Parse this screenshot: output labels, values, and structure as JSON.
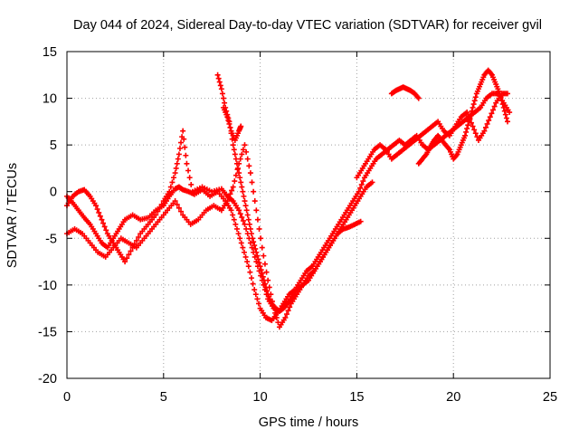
{
  "chart_data": {
    "type": "scatter",
    "title": "Day 044 of 2024, Sidereal Day-to-day VTEC variation (SDTVAR) for receiver gvil",
    "xlabel": "GPS time / hours",
    "ylabel": "SDTVAR / TECUs",
    "xlim": [
      0,
      25
    ],
    "ylim": [
      -20,
      15
    ],
    "x_ticks": [
      "0",
      "5",
      "10",
      "15",
      "20",
      "25"
    ],
    "y_ticks": [
      "15",
      "10",
      "5",
      "0",
      "-5",
      "-10",
      "-15",
      "-20"
    ],
    "grid": true,
    "legend": "none",
    "marker": "plus",
    "color": "#ff0000",
    "series": [
      {
        "x": [
          0.0,
          0.3,
          0.6,
          0.9,
          1.2,
          1.5,
          1.8,
          2.1,
          2.4,
          2.7,
          3.0,
          3.4,
          3.8,
          4.2,
          4.6,
          5.0,
          5.3,
          5.6,
          5.8,
          6.0,
          6.3,
          6.6,
          7.0,
          7.4,
          7.8,
          8.2,
          8.5,
          8.8,
          9.1,
          9.4,
          9.7,
          10.0,
          10.3,
          10.6,
          10.9,
          11.2,
          11.5,
          11.8,
          12.1,
          12.4,
          12.7,
          13.0,
          13.3,
          13.6,
          13.9,
          14.2,
          14.5,
          14.8,
          15.1,
          15.4,
          15.7,
          16.0,
          16.3,
          16.6,
          16.9,
          17.2,
          17.5,
          17.8,
          18.1,
          18.4,
          18.7,
          19.0,
          19.3,
          19.6,
          19.9,
          20.2,
          20.5,
          20.8,
          21.1,
          21.4,
          21.7,
          22.0,
          22.3,
          22.6,
          22.9
        ],
        "y": [
          -0.5,
          -1.2,
          -2.0,
          -2.8,
          -3.5,
          -4.5,
          -5.5,
          -6.0,
          -5.0,
          -4.0,
          -3.0,
          -2.5,
          -3.0,
          -2.8,
          -2.0,
          -1.5,
          -0.5,
          0.3,
          0.5,
          0.2,
          0.0,
          -0.3,
          0.2,
          -0.5,
          0.0,
          -1.0,
          -2.0,
          -4.0,
          -6.0,
          -8.0,
          -10.5,
          -12.5,
          -13.5,
          -13.8,
          -13.0,
          -12.0,
          -11.0,
          -10.5,
          -9.5,
          -8.5,
          -8.0,
          -7.0,
          -6.0,
          -5.0,
          -4.0,
          -3.0,
          -2.0,
          -1.0,
          0.0,
          1.5,
          2.5,
          3.5,
          4.0,
          4.5,
          5.0,
          5.5,
          5.0,
          5.5,
          6.0,
          5.0,
          4.5,
          5.0,
          5.5,
          6.0,
          6.5,
          7.0,
          7.5,
          8.0,
          8.5,
          9.0,
          10.0,
          10.5,
          10.5,
          9.5,
          8.5
        ]
      },
      {
        "x": [
          0.0,
          0.3,
          0.6,
          0.9,
          1.2,
          1.5,
          1.8,
          2.1,
          2.4,
          2.7,
          3.0,
          3.4,
          3.8,
          4.2,
          4.6,
          5.0,
          5.3,
          5.6,
          5.8,
          6.0,
          6.2,
          6.5,
          7.0,
          7.5,
          8.0,
          8.3,
          8.6,
          8.9,
          9.2,
          9.5,
          9.8,
          10.1,
          10.4,
          10.7,
          11.0,
          11.3,
          11.6,
          11.9,
          12.2,
          12.5,
          12.8,
          13.1,
          13.4,
          13.7,
          14.0,
          14.3,
          14.6,
          14.9,
          15.2,
          15.5,
          15.8
        ],
        "y": [
          -1.5,
          -0.5,
          0.0,
          0.2,
          -0.5,
          -1.5,
          -3.0,
          -4.5,
          -5.5,
          -6.5,
          -7.5,
          -6.0,
          -4.5,
          -3.5,
          -2.5,
          -1.0,
          0.0,
          2.0,
          4.0,
          6.5,
          3.0,
          0.0,
          0.5,
          0.0,
          0.3,
          -0.5,
          -1.0,
          -2.0,
          -3.5,
          -5.5,
          -7.5,
          -9.5,
          -11.5,
          -12.5,
          -12.8,
          -12.3,
          -11.5,
          -10.5,
          -10.0,
          -9.5,
          -8.5,
          -7.5,
          -6.5,
          -5.5,
          -4.5,
          -3.5,
          -2.5,
          -1.5,
          -0.5,
          0.5,
          1.0
        ]
      },
      {
        "x": [
          0.0,
          0.4,
          0.8,
          1.2,
          1.6,
          2.0,
          2.4,
          2.8,
          3.2,
          3.6,
          4.0,
          4.4,
          4.8,
          5.2,
          5.6,
          6.0,
          6.4,
          6.8,
          7.2,
          7.6,
          8.0,
          8.3,
          8.6,
          8.9,
          9.2,
          9.5,
          9.8,
          10.1,
          10.4,
          10.7,
          11.0,
          11.3,
          11.6,
          11.9,
          12.2,
          12.5,
          12.8,
          13.1,
          13.4,
          13.7,
          14.0,
          14.3,
          14.6,
          14.9,
          15.2
        ],
        "y": [
          -4.5,
          -4.0,
          -4.5,
          -5.5,
          -6.5,
          -7.0,
          -6.0,
          -5.0,
          -5.5,
          -6.0,
          -5.0,
          -4.0,
          -3.0,
          -2.0,
          -1.0,
          -2.5,
          -3.5,
          -3.0,
          -2.0,
          -1.5,
          -2.0,
          -1.0,
          0.5,
          3.0,
          5.0,
          2.0,
          -2.0,
          -6.0,
          -9.5,
          -12.5,
          -14.5,
          -13.5,
          -12.0,
          -11.0,
          -10.0,
          -9.0,
          -8.5,
          -7.5,
          -6.5,
          -5.5,
          -4.5,
          -4.0,
          -3.8,
          -3.5,
          -3.2
        ]
      },
      {
        "x": [
          7.8,
          8.0,
          8.2,
          8.4,
          8.6,
          8.8,
          9.0,
          9.2,
          9.4,
          9.6,
          9.8,
          10.0,
          10.2,
          10.4,
          10.6,
          10.8,
          11.0,
          11.2,
          11.4,
          11.6,
          11.8
        ],
        "y": [
          12.5,
          11.0,
          9.0,
          7.5,
          5.0,
          3.0,
          1.0,
          -1.0,
          -3.0,
          -5.0,
          -6.5,
          -8.0,
          -9.5,
          -11.0,
          -12.0,
          -12.5,
          -12.8,
          -12.5,
          -12.0,
          -11.5,
          -11.0
        ]
      },
      {
        "x": [
          8.1,
          8.3,
          8.5,
          8.7,
          8.9,
          9.0
        ],
        "y": [
          9.0,
          8.0,
          6.5,
          5.5,
          6.5,
          7.0
        ]
      },
      {
        "x": [
          16.8,
          17.0,
          17.2,
          17.4,
          17.6,
          17.8,
          18.0,
          18.2
        ],
        "y": [
          10.5,
          10.8,
          11.0,
          11.2,
          11.0,
          10.8,
          10.5,
          10.0
        ]
      },
      {
        "x": [
          18.2,
          18.4,
          18.6,
          18.8,
          19.0,
          19.2,
          19.4,
          19.6,
          19.8,
          20.0,
          20.2,
          20.4,
          20.6,
          20.8,
          21.0,
          21.2,
          21.4,
          21.6,
          21.8,
          22.0,
          22.2,
          22.4,
          22.6,
          22.8
        ],
        "y": [
          3.0,
          3.5,
          4.0,
          4.8,
          5.5,
          6.0,
          5.5,
          5.0,
          4.5,
          3.5,
          4.0,
          5.0,
          6.0,
          7.5,
          9.0,
          10.5,
          11.5,
          12.5,
          13.0,
          12.5,
          11.5,
          10.5,
          9.0,
          7.5
        ]
      },
      {
        "x": [
          15.0,
          15.3,
          15.6,
          15.9,
          16.2,
          16.5,
          16.8,
          17.1,
          17.4,
          17.7,
          18.0,
          18.3,
          18.6,
          18.9,
          19.2,
          19.5,
          19.8,
          20.1,
          20.4,
          20.7,
          21.0,
          21.3,
          21.6,
          21.9,
          22.2,
          22.5,
          22.8
        ],
        "y": [
          1.5,
          2.5,
          3.5,
          4.5,
          5.0,
          4.5,
          3.5,
          4.0,
          4.5,
          5.0,
          5.5,
          6.0,
          6.5,
          7.0,
          7.5,
          6.5,
          6.0,
          7.0,
          8.0,
          8.5,
          7.0,
          5.5,
          6.5,
          8.0,
          9.5,
          10.5,
          10.5
        ]
      }
    ]
  }
}
